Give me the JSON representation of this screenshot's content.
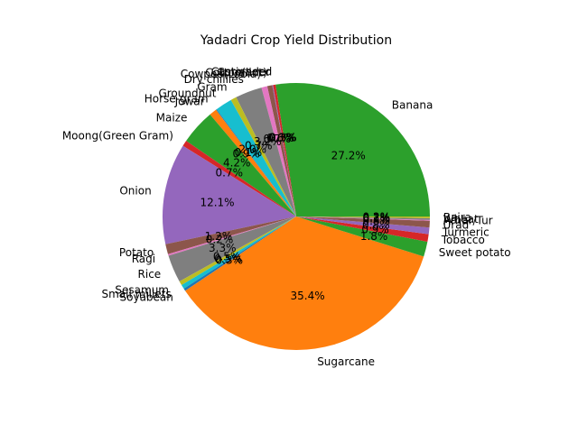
{
  "chart_data": {
    "type": "pie",
    "title": "Yadadri Crop Yield Distribution",
    "start_angle_deg": 0,
    "direction": "counterclockwise",
    "slices": [
      {
        "label": "Banana",
        "value": 27.2,
        "color": "#2ca02c"
      },
      {
        "label": "Castorseed",
        "value": 0.3,
        "color": "#d62728"
      },
      {
        "label": "Coriander",
        "value": 0.1,
        "color": "#9467bd"
      },
      {
        "label": "Cotton(lint)",
        "value": 0.6,
        "color": "#8c564b"
      },
      {
        "label": "Cowpea(Lobia)",
        "value": 0.7,
        "color": "#e377c2"
      },
      {
        "label": "Dry chillies",
        "value": 3.2,
        "color": "#7f7f7f"
      },
      {
        "label": "Gram",
        "value": 0.7,
        "color": "#bcbd22"
      },
      {
        "label": "Groundnut",
        "value": 2.0,
        "color": "#17becf"
      },
      {
        "label": "Horse-gram",
        "value": 0.1,
        "color": "#1f77b4"
      },
      {
        "label": "Jowar",
        "value": 0.9,
        "color": "#ff7f0e"
      },
      {
        "label": "Maize",
        "value": 4.2,
        "color": "#2ca02c"
      },
      {
        "label": "Moong(Green Gram)",
        "value": 0.7,
        "color": "#d62728"
      },
      {
        "label": "Onion",
        "value": 12.1,
        "color": "#9467bd"
      },
      {
        "label": "Potato",
        "value": 1.2,
        "color": "#8c564b"
      },
      {
        "label": "Ragi",
        "value": 0.2,
        "color": "#e377c2"
      },
      {
        "label": "Rice",
        "value": 3.3,
        "color": "#7f7f7f"
      },
      {
        "label": "Sesamum",
        "value": 0.5,
        "color": "#bcbd22"
      },
      {
        "label": "Small millets",
        "value": 0.5,
        "color": "#17becf"
      },
      {
        "label": "Soyabean",
        "value": 0.3,
        "color": "#1f77b4"
      },
      {
        "label": "Sugarcane",
        "value": 35.4,
        "color": "#ff7f0e"
      },
      {
        "label": "Sweet potato",
        "value": 1.8,
        "color": "#2ca02c"
      },
      {
        "label": "Tobacco",
        "value": 0.9,
        "color": "#d62728"
      },
      {
        "label": "Turmeric",
        "value": 0.8,
        "color": "#9467bd"
      },
      {
        "label": "Urad",
        "value": 0.8,
        "color": "#8c564b"
      },
      {
        "label": "Arhar/Tur",
        "value": 0.1,
        "color": "#e377c2"
      },
      {
        "label": "Wheat",
        "value": 0.2,
        "color": "#7f7f7f"
      },
      {
        "label": "Bajra",
        "value": 0.2,
        "color": "#bcbd22"
      }
    ]
  }
}
